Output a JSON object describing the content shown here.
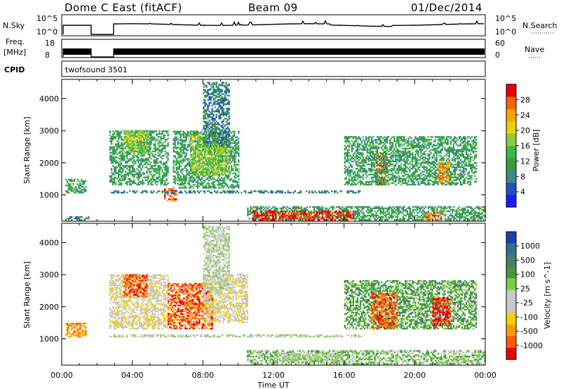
{
  "header": {
    "station": "Dome C East (fitACF)",
    "beam": "Beam 09",
    "date": "01/Dec/2014"
  },
  "top_strips": {
    "nsky_label": "N.Sky",
    "nsearch_label": "N.Search",
    "freq_label_1": "Freq.",
    "freq_label_2": "[MHz]",
    "nave_label": "Nave",
    "cpid_label": "CPID",
    "cpid_value": "twofsound 3501",
    "noise_ticks_left": [
      "10^5",
      "10^0"
    ],
    "noise_ticks_right": [
      "10^5",
      "10^0"
    ],
    "freq_ticks_left": [
      "18",
      "8"
    ],
    "nave_ticks_right": [
      "60",
      "0"
    ]
  },
  "colors": {
    "power_scale": [
      "#1a1aff",
      "#2050c0",
      "#3b8a8a",
      "#3c9a3c",
      "#3cb84a",
      "#8ccd3c",
      "#e8d000",
      "#ffa000",
      "#ff6000",
      "#e80000"
    ],
    "velocity_scale": [
      "#1b3fb0",
      "#2e6f8f",
      "#4a7a6a",
      "#3f9a3f",
      "#7ad03a",
      "#c8c8c8",
      "#c8c8c8",
      "#f0d000",
      "#ff9a00",
      "#ff5a00",
      "#e80000"
    ]
  },
  "chart_data": [
    {
      "type": "heatmap",
      "name": "power-panel",
      "xlabel": "",
      "ylabel": "Slant Range [km]",
      "x_ticks": [
        "00:00",
        "04:00",
        "08:00",
        "12:00",
        "16:00",
        "20:00",
        "00:00"
      ],
      "y_ticks": [
        "1000",
        "2000",
        "3000",
        "4000"
      ],
      "xlim_hours": [
        0,
        24
      ],
      "ylim_km": [
        180,
        4600
      ],
      "colorbar": {
        "label": "Power [dB]",
        "ticks": [
          "4",
          "8",
          "12",
          "16",
          "20",
          "24",
          "28"
        ]
      },
      "regions": [
        {
          "t": [
            0.2,
            1.4
          ],
          "r": [
            1050,
            1500
          ],
          "level": 3
        },
        {
          "t": [
            0.2,
            1.5
          ],
          "r": [
            200,
            320
          ],
          "level": 2
        },
        {
          "t": [
            2.7,
            6.0
          ],
          "r": [
            1300,
            3000
          ],
          "level": 3
        },
        {
          "t": [
            3.5,
            4.8
          ],
          "r": [
            2300,
            3000
          ],
          "level": 5
        },
        {
          "t": [
            5.8,
            6.5
          ],
          "r": [
            800,
            1200
          ],
          "level": 8
        },
        {
          "t": [
            6.3,
            10.0
          ],
          "r": [
            1200,
            3000
          ],
          "level": 3
        },
        {
          "t": [
            7.3,
            9.5
          ],
          "r": [
            1600,
            2900
          ],
          "level": 5
        },
        {
          "t": [
            8.0,
            9.5
          ],
          "r": [
            2500,
            4500
          ],
          "level": 2
        },
        {
          "t": [
            2.7,
            17.0
          ],
          "r": [
            1050,
            1120
          ],
          "level": 2
        },
        {
          "t": [
            10.5,
            24.0
          ],
          "r": [
            200,
            650
          ],
          "level": 3
        },
        {
          "t": [
            10.8,
            16.5
          ],
          "r": [
            200,
            500
          ],
          "level": 9
        },
        {
          "t": [
            17.8,
            18.4
          ],
          "r": [
            1300,
            2300
          ],
          "level": 8
        },
        {
          "t": [
            16.0,
            23.5
          ],
          "r": [
            1300,
            2800
          ],
          "level": 3
        },
        {
          "t": [
            21.3,
            22.0
          ],
          "r": [
            1400,
            2000
          ],
          "level": 7
        },
        {
          "t": [
            20.5,
            21.5
          ],
          "r": [
            200,
            450
          ],
          "level": 8
        }
      ]
    },
    {
      "type": "heatmap",
      "name": "velocity-panel",
      "xlabel": "Time UT",
      "ylabel": "Slant Range [km]",
      "x_ticks": [
        "00:00",
        "04:00",
        "08:00",
        "12:00",
        "16:00",
        "20:00",
        "00:00"
      ],
      "y_ticks": [
        "1000",
        "2000",
        "3000",
        "4000"
      ],
      "xlim_hours": [
        0,
        24
      ],
      "ylim_km": [
        180,
        4600
      ],
      "colorbar": {
        "label": "Velocity [m s^-1]",
        "ticks": [
          "1000",
          "500",
          "100",
          "25",
          "-25",
          "-100",
          "-500",
          "-1000"
        ]
      },
      "regions": [
        {
          "t": [
            0.2,
            1.4
          ],
          "r": [
            1050,
            1500
          ],
          "level": 8
        },
        {
          "t": [
            2.7,
            6.0
          ],
          "r": [
            1300,
            3000
          ],
          "level": 6
        },
        {
          "t": [
            3.5,
            4.8
          ],
          "r": [
            2300,
            3000
          ],
          "level": 9
        },
        {
          "t": [
            6.0,
            8.5
          ],
          "r": [
            1300,
            2700
          ],
          "level": 9
        },
        {
          "t": [
            8.0,
            10.5
          ],
          "r": [
            1500,
            3000
          ],
          "level": 6
        },
        {
          "t": [
            8.0,
            9.5
          ],
          "r": [
            2500,
            4500
          ],
          "level": 5
        },
        {
          "t": [
            2.7,
            17.0
          ],
          "r": [
            1050,
            1120
          ],
          "level": 5
        },
        {
          "t": [
            10.5,
            24.0
          ],
          "r": [
            200,
            650
          ],
          "level": 4
        },
        {
          "t": [
            12.0,
            16.0
          ],
          "r": [
            300,
            550
          ],
          "level": 5
        },
        {
          "t": [
            16.0,
            23.5
          ],
          "r": [
            1300,
            2800
          ],
          "level": 3
        },
        {
          "t": [
            17.5,
            19.0
          ],
          "r": [
            1300,
            2400
          ],
          "level": 9
        },
        {
          "t": [
            21.0,
            22.0
          ],
          "r": [
            1400,
            2300
          ],
          "level": 10
        }
      ]
    }
  ]
}
